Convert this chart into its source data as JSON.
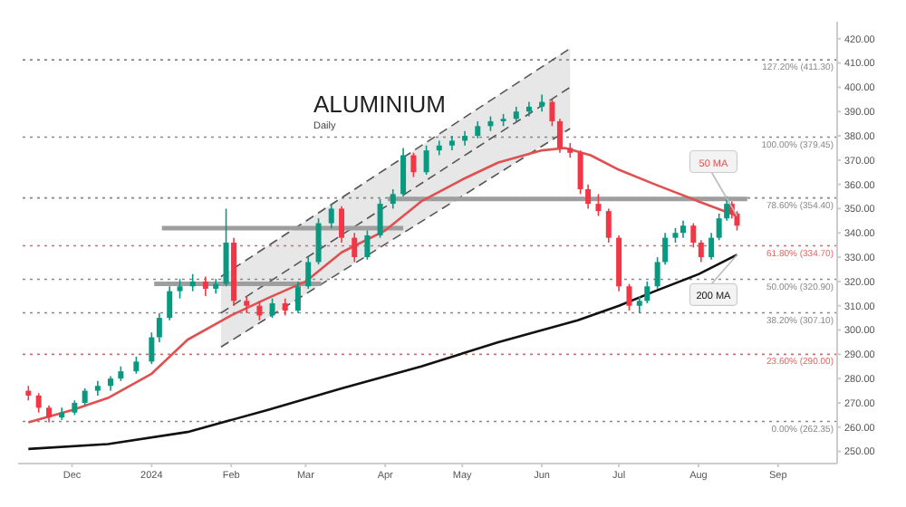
{
  "chart_data": {
    "type": "candlestick",
    "title": "ALUMINIUM",
    "subtitle": "Daily",
    "x": [
      "2023-11-14",
      "2023-11-18",
      "2023-11-22",
      "2023-11-27",
      "2023-12-02",
      "2023-12-06",
      "2023-12-11",
      "2023-12-16",
      "2023-12-20",
      "2023-12-26",
      "2024-01-01",
      "2024-01-04",
      "2024-01-08",
      "2024-01-12",
      "2024-01-17",
      "2024-01-22",
      "2024-01-26",
      "2024-01-30",
      "2024-02-02",
      "2024-02-07",
      "2024-02-12",
      "2024-02-17",
      "2024-02-22",
      "2024-02-27",
      "2024-03-02",
      "2024-03-06",
      "2024-03-11",
      "2024-03-15",
      "2024-03-20",
      "2024-03-25",
      "2024-03-30",
      "2024-04-04",
      "2024-04-08",
      "2024-04-12",
      "2024-04-17",
      "2024-04-22",
      "2024-04-27",
      "2024-05-02",
      "2024-05-07",
      "2024-05-12",
      "2024-05-17",
      "2024-05-22",
      "2024-05-27",
      "2024-06-01",
      "2024-06-05",
      "2024-06-08",
      "2024-06-12",
      "2024-06-16",
      "2024-06-19",
      "2024-06-23",
      "2024-06-27",
      "2024-07-01",
      "2024-07-05",
      "2024-07-09",
      "2024-07-12",
      "2024-07-16",
      "2024-07-19",
      "2024-07-23",
      "2024-07-26",
      "2024-07-30",
      "2024-08-02",
      "2024-08-06",
      "2024-08-09",
      "2024-08-12",
      "2024-08-14",
      "2024-08-16"
    ],
    "ohlc": [
      [
        275,
        277,
        271,
        273
      ],
      [
        273,
        274,
        266,
        268
      ],
      [
        268,
        269,
        262,
        264
      ],
      [
        264,
        268,
        263,
        266
      ],
      [
        266,
        271,
        265,
        270
      ],
      [
        270,
        276,
        269,
        275
      ],
      [
        275,
        279,
        273,
        277
      ],
      [
        277,
        281,
        275,
        280
      ],
      [
        280,
        285,
        279,
        283
      ],
      [
        283,
        289,
        282,
        287
      ],
      [
        287,
        299,
        286,
        297
      ],
      [
        297,
        307,
        295,
        305
      ],
      [
        305,
        318,
        304,
        316
      ],
      [
        316,
        321,
        313,
        318
      ],
      [
        318,
        323,
        316,
        320
      ],
      [
        320,
        322,
        314,
        317
      ],
      [
        317,
        321,
        315,
        319
      ],
      [
        319,
        350,
        318,
        336
      ],
      [
        336,
        338,
        310,
        312
      ],
      [
        312,
        314,
        307,
        310
      ],
      [
        310,
        312,
        304,
        306
      ],
      [
        306,
        313,
        305,
        311
      ],
      [
        311,
        313,
        306,
        308
      ],
      [
        308,
        320,
        307,
        318
      ],
      [
        318,
        330,
        317,
        328
      ],
      [
        328,
        346,
        327,
        344
      ],
      [
        344,
        352,
        342,
        350
      ],
      [
        350,
        351,
        336,
        338
      ],
      [
        338,
        340,
        328,
        330
      ],
      [
        330,
        341,
        329,
        339
      ],
      [
        339,
        354,
        338,
        352
      ],
      [
        352,
        358,
        350,
        356
      ],
      [
        356,
        375,
        355,
        372
      ],
      [
        372,
        373,
        363,
        365
      ],
      [
        365,
        376,
        364,
        374
      ],
      [
        374,
        378,
        372,
        376
      ],
      [
        376,
        380,
        374,
        378
      ],
      [
        378,
        382,
        376,
        380
      ],
      [
        380,
        386,
        379,
        384
      ],
      [
        384,
        388,
        382,
        386
      ],
      [
        386,
        389,
        384,
        387
      ],
      [
        387,
        392,
        386,
        390
      ],
      [
        390,
        394,
        388,
        392
      ],
      [
        392,
        397,
        390,
        394
      ],
      [
        394,
        395,
        384,
        386
      ],
      [
        386,
        387,
        373,
        375
      ],
      [
        375,
        377,
        371,
        373
      ],
      [
        373,
        374,
        356,
        358
      ],
      [
        358,
        360,
        350,
        352
      ],
      [
        352,
        356,
        347,
        349
      ],
      [
        349,
        350,
        336,
        338
      ],
      [
        338,
        339,
        316,
        318
      ],
      [
        318,
        319,
        308,
        310
      ],
      [
        310,
        314,
        307,
        312
      ],
      [
        312,
        320,
        311,
        318
      ],
      [
        318,
        330,
        317,
        328
      ],
      [
        328,
        340,
        327,
        338
      ],
      [
        338,
        342,
        336,
        340
      ],
      [
        340,
        345,
        338,
        343
      ],
      [
        343,
        344,
        334,
        336
      ],
      [
        336,
        337,
        328,
        330
      ],
      [
        330,
        340,
        329,
        338
      ],
      [
        338,
        348,
        337,
        346
      ],
      [
        346,
        355,
        345,
        352
      ],
      [
        352,
        353,
        346,
        348
      ],
      [
        348,
        349,
        341,
        343
      ]
    ],
    "colors": [
      "#f23645",
      "#f23645",
      "#f23645",
      "#089981",
      "#089981",
      "#089981",
      "#089981",
      "#089981",
      "#089981",
      "#089981",
      "#089981",
      "#089981",
      "#089981",
      "#089981",
      "#089981",
      "#f23645",
      "#089981",
      "#089981",
      "#f23645",
      "#f23645",
      "#f23645",
      "#089981",
      "#f23645",
      "#089981",
      "#089981",
      "#089981",
      "#089981",
      "#f23645",
      "#f23645",
      "#089981",
      "#089981",
      "#089981",
      "#089981",
      "#f23645",
      "#089981",
      "#089981",
      "#089981",
      "#089981",
      "#089981",
      "#089981",
      "#089981",
      "#089981",
      "#089981",
      "#089981",
      "#f23645",
      "#f23645",
      "#f23645",
      "#f23645",
      "#f23645",
      "#f23645",
      "#f23645",
      "#f23645",
      "#f23645",
      "#089981",
      "#089981",
      "#089981",
      "#089981",
      "#089981",
      "#089981",
      "#f23645",
      "#f23645",
      "#089981",
      "#089981",
      "#089981",
      "#f23645",
      "#f23645"
    ],
    "series": [
      {
        "type": "line",
        "color": "#555555",
        "line_style": "dashed",
        "x": [
          "2024-01-28",
          "2024-06-12"
        ],
        "values": [
          307,
          400
        ],
        "lower": [
          293,
          383
        ],
        "upper": [
          322,
          416
        ]
      },
      {
        "type": "line",
        "color": "#555555",
        "line_style": "dashed",
        "x": [
          "2024-01-28",
          "2024-06-12"
        ],
        "values": [
          322,
          416
        ]
      },
      {
        "type": "line",
        "color": "#555555",
        "line_style": "dashed",
        "x": [
          "2024-01-28",
          "2024-06-12"
        ],
        "values": [
          293,
          383
        ]
      },
      {
        "type": "line",
        "color": "#9e9e9e",
        "line_style": "solid",
        "x": [
          "2024-01-05",
          "2024-04-08"
        ],
        "values": [
          342,
          342
        ]
      },
      {
        "type": "line",
        "color": "#9e9e9e",
        "line_style": "solid",
        "x": [
          "2024-01-02",
          "2024-03-07"
        ],
        "values": [
          319,
          319
        ]
      },
      {
        "type": "line",
        "color": "#9e9e9e",
        "line_style": "solid",
        "x": [
          "2024-04-02",
          "2024-08-20"
        ],
        "values": [
          354,
          354
        ]
      },
      {
        "type": "line",
        "name": "50 MA",
        "color": "#e05050",
        "line_style": "solid",
        "x": [
          "2023-11-14",
          "2023-12-01",
          "2023-12-15",
          "2024-01-01",
          "2024-01-15",
          "2024-02-01",
          "2024-02-15",
          "2024-03-01",
          "2024-03-15",
          "2024-04-01",
          "2024-04-15",
          "2024-05-01",
          "2024-05-15",
          "2024-06-01",
          "2024-06-10",
          "2024-06-20",
          "2024-07-01",
          "2024-07-15",
          "2024-08-01",
          "2024-08-16"
        ],
        "values": [
          262,
          267,
          272,
          282,
          296,
          306,
          313,
          320,
          332,
          341,
          353,
          362,
          369,
          374,
          375,
          372,
          366,
          360,
          353,
          347
        ]
      },
      {
        "type": "line",
        "name": "200 MA",
        "color": "#111111",
        "line_style": "solid",
        "x": [
          "2023-11-14",
          "2023-12-15",
          "2024-01-15",
          "2024-02-15",
          "2024-03-15",
          "2024-04-15",
          "2024-05-15",
          "2024-06-15",
          "2024-07-01",
          "2024-07-15",
          "2024-08-01",
          "2024-08-16"
        ],
        "values": [
          251,
          253,
          258,
          267,
          276,
          285,
          295,
          304,
          310,
          316,
          323,
          331
        ]
      }
    ],
    "ref_lines": [
      {
        "axis": "y",
        "value": 411.3,
        "label": "127.20% (411.30)",
        "color": "#888888",
        "line_style": "dotted"
      },
      {
        "axis": "y",
        "value": 379.45,
        "label": "100.00% (379.45)",
        "color": "#888888",
        "line_style": "dotted"
      },
      {
        "axis": "y",
        "value": 354.4,
        "label": "78.60% (354.40)",
        "color": "#888888",
        "line_style": "dotted"
      },
      {
        "axis": "y",
        "value": 334.7,
        "label": "61.80% (334.70)",
        "color": "#e06666",
        "line_style": "dotted"
      },
      {
        "axis": "y",
        "value": 320.9,
        "label": "50.00% (320.90)",
        "color": "#888888",
        "line_style": "dotted"
      },
      {
        "axis": "y",
        "value": 307.1,
        "label": "38.20% (307.10)",
        "color": "#888888",
        "line_style": "dotted"
      },
      {
        "axis": "y",
        "value": 290,
        "label": "23.60% (290.00)",
        "color": "#e06666",
        "line_style": "dotted"
      },
      {
        "axis": "y",
        "value": 262.35,
        "label": "0.00% (262.35)",
        "color": "#888888",
        "line_style": "dotted"
      }
    ],
    "xlim": [
      "2023-11-10",
      "2024-09-24"
    ],
    "xticks": [
      {
        "value": "2023-12-01",
        "label": "Dec"
      },
      {
        "value": "2024-01-01",
        "label": "2024"
      },
      {
        "value": "2024-02-01",
        "label": "Feb"
      },
      {
        "value": "2024-03-01",
        "label": "Mar"
      },
      {
        "value": "2024-04-01",
        "label": "Apr"
      },
      {
        "value": "2024-05-01",
        "label": "May"
      },
      {
        "value": "2024-06-01",
        "label": "Jun"
      },
      {
        "value": "2024-07-01",
        "label": "Jul"
      },
      {
        "value": "2024-08-01",
        "label": "Aug"
      },
      {
        "value": "2024-09-01",
        "label": "Sep"
      }
    ],
    "ylim": [
      245,
      427
    ],
    "yticks": [
      {
        "value": 250,
        "label": "250.00"
      },
      {
        "value": 260,
        "label": "260.00"
      },
      {
        "value": 270,
        "label": "270.00"
      },
      {
        "value": 280,
        "label": "280.00"
      },
      {
        "value": 290,
        "label": "290.00"
      },
      {
        "value": 300,
        "label": "300.00"
      },
      {
        "value": 310,
        "label": "310.00"
      },
      {
        "value": 320,
        "label": "320.00"
      },
      {
        "value": 330,
        "label": "330.00"
      },
      {
        "value": 340,
        "label": "340.00"
      },
      {
        "value": 350,
        "label": "350.00"
      },
      {
        "value": 360,
        "label": "360.00"
      },
      {
        "value": 370,
        "label": "370.00"
      },
      {
        "value": 380,
        "label": "380.00"
      },
      {
        "value": 390,
        "label": "390.00"
      },
      {
        "value": 400,
        "label": "400.00"
      },
      {
        "value": 410,
        "label": "410.00"
      },
      {
        "value": 420,
        "label": "420.00"
      }
    ]
  }
}
